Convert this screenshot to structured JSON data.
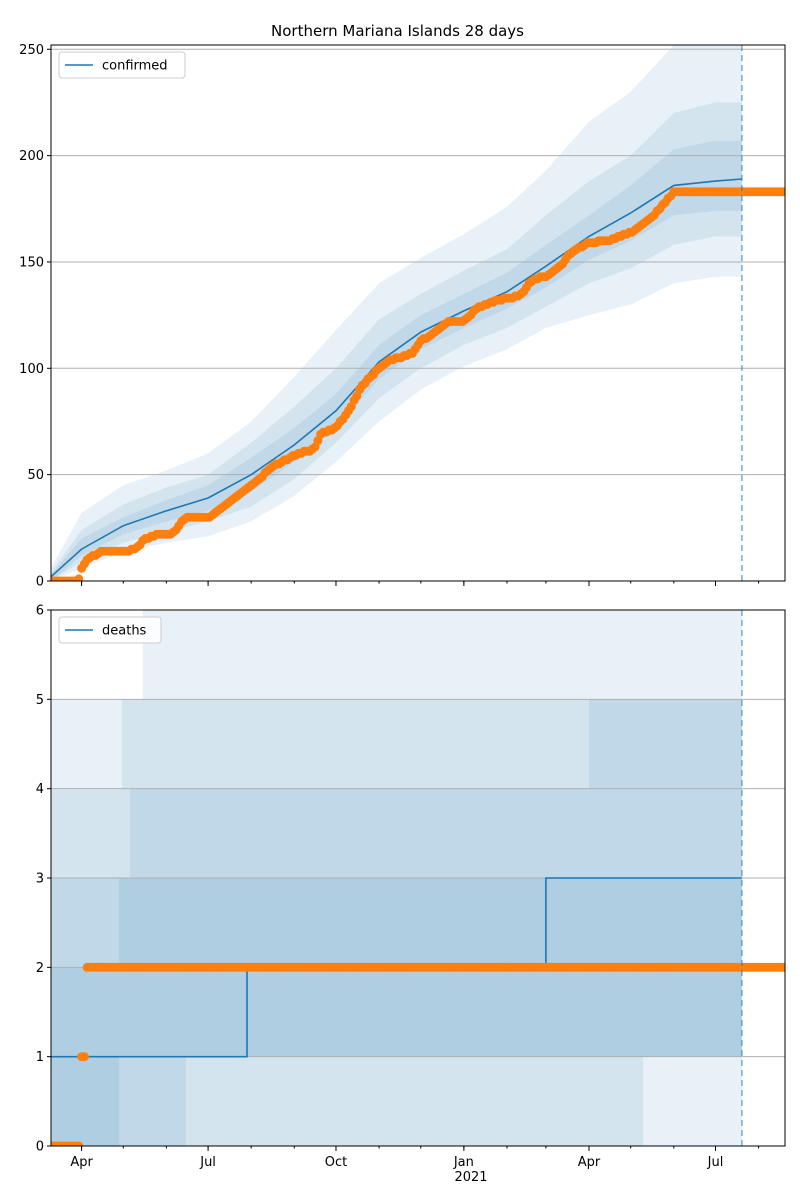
{
  "figure": {
    "title": "Northern Mariana Islands 28 days",
    "vline_date": "2021-07-20"
  },
  "colors": {
    "line": "#1f77b4",
    "observed": "#ff7f0e",
    "band": "#1f77b4",
    "grid": "#b0b0b0"
  },
  "chart_data": [
    {
      "type": "line",
      "panel": "confirmed",
      "title": "Northern Mariana Islands 28 days",
      "xlim": [
        "2020-03-10",
        "2021-08-20"
      ],
      "ylim": [
        0,
        252
      ],
      "yticks": [
        0,
        50,
        100,
        150,
        200,
        250
      ],
      "xticks": [
        {
          "date": "2020-04-01",
          "label": "Apr"
        },
        {
          "date": "2020-07-01",
          "label": "Jul"
        },
        {
          "date": "2020-10-01",
          "label": "Oct"
        },
        {
          "date": "2021-01-01",
          "label": "Jan"
        },
        {
          "date": "2021-04-01",
          "label": "Apr"
        },
        {
          "date": "2021-07-01",
          "label": "Jul"
        }
      ],
      "year_label": "2021",
      "grid": true,
      "legend": "top-left",
      "series": [
        {
          "name": "confirmed",
          "x": [
            "2020-03-10",
            "2020-04-01",
            "2020-05-01",
            "2020-06-01",
            "2020-07-01",
            "2020-08-01",
            "2020-09-01",
            "2020-10-01",
            "2020-11-01",
            "2020-12-01",
            "2021-01-01",
            "2021-02-01",
            "2021-03-01",
            "2021-04-01",
            "2021-05-01",
            "2021-06-01",
            "2021-07-01",
            "2021-07-20"
          ],
          "y": [
            2,
            15,
            26,
            33,
            39,
            50,
            64,
            80,
            103,
            117,
            127,
            136,
            148,
            162,
            173,
            186,
            188,
            189
          ]
        }
      ],
      "bands": [
        {
          "x": [
            "2020-03-10",
            "2020-04-01",
            "2020-05-01",
            "2020-06-01",
            "2020-07-01",
            "2020-08-01",
            "2020-09-01",
            "2020-10-01",
            "2020-11-01",
            "2020-12-01",
            "2021-01-01",
            "2021-02-01",
            "2021-03-01",
            "2021-04-01",
            "2021-05-01",
            "2021-06-01",
            "2021-07-01",
            "2021-07-20"
          ],
          "lower": [
            0,
            6,
            14,
            18,
            21,
            28,
            40,
            56,
            75,
            90,
            101,
            109,
            119,
            125,
            130,
            140,
            143,
            143
          ],
          "upper": [
            6,
            32,
            45,
            52,
            60,
            75,
            96,
            118,
            140,
            152,
            163,
            176,
            193,
            216,
            230,
            252,
            252,
            252
          ]
        },
        {
          "x": [
            "2020-03-10",
            "2020-04-01",
            "2020-05-01",
            "2020-06-01",
            "2020-07-01",
            "2020-08-01",
            "2020-09-01",
            "2020-10-01",
            "2020-11-01",
            "2020-12-01",
            "2021-01-01",
            "2021-02-01",
            "2021-03-01",
            "2021-04-01",
            "2021-05-01",
            "2021-06-01",
            "2021-07-01",
            "2021-07-20"
          ],
          "lower": [
            0,
            9,
            18,
            23,
            28,
            35,
            48,
            65,
            86,
            100,
            111,
            119,
            129,
            140,
            147,
            158,
            162,
            162
          ],
          "upper": [
            4,
            24,
            36,
            44,
            50,
            65,
            82,
            100,
            123,
            135,
            146,
            156,
            172,
            188,
            200,
            220,
            225,
            225
          ]
        },
        {
          "x": [
            "2020-03-10",
            "2020-04-01",
            "2020-05-01",
            "2020-06-01",
            "2020-07-01",
            "2020-08-01",
            "2020-09-01",
            "2020-10-01",
            "2020-11-01",
            "2020-12-01",
            "2021-01-01",
            "2021-02-01",
            "2021-03-01",
            "2021-04-01",
            "2021-05-01",
            "2021-06-01",
            "2021-07-01",
            "2021-07-20"
          ],
          "lower": [
            0,
            12,
            22,
            28,
            33,
            42,
            56,
            72,
            95,
            109,
            119,
            128,
            138,
            151,
            160,
            172,
            174,
            174
          ],
          "upper": [
            3,
            20,
            30,
            38,
            45,
            58,
            72,
            88,
            111,
            125,
            135,
            145,
            158,
            172,
            186,
            203,
            207,
            207
          ]
        }
      ],
      "observed": {
        "x": [
          "2020-03-10",
          "2020-03-28",
          "2020-03-31",
          "2020-04-01",
          "2020-04-05",
          "2020-04-15",
          "2020-05-01",
          "2020-05-10",
          "2020-05-15",
          "2020-05-25",
          "2020-06-05",
          "2020-06-10",
          "2020-06-15",
          "2020-06-30",
          "2020-07-05",
          "2020-07-15",
          "2020-08-01",
          "2020-08-10",
          "2020-08-20",
          "2020-09-01",
          "2020-09-15",
          "2020-09-20",
          "2020-10-01",
          "2020-10-10",
          "2020-10-20",
          "2020-11-01",
          "2020-11-10",
          "2020-11-25",
          "2020-12-01",
          "2020-12-10",
          "2020-12-20",
          "2021-01-01",
          "2021-01-10",
          "2021-01-20",
          "2021-02-01",
          "2021-02-10",
          "2021-02-20",
          "2021-03-01",
          "2021-03-10",
          "2021-03-20",
          "2021-04-01",
          "2021-04-15",
          "2021-05-01",
          "2021-05-15",
          "2021-05-22",
          "2021-06-01",
          "2021-07-01",
          "2021-08-20"
        ],
        "y": [
          0,
          0,
          2,
          6,
          10,
          14,
          14,
          15,
          19,
          22,
          22,
          26,
          30,
          30,
          31,
          36,
          45,
          50,
          55,
          59,
          62,
          69,
          72,
          80,
          92,
          100,
          104,
          107,
          113,
          116,
          122,
          122,
          128,
          131,
          133,
          134,
          142,
          143,
          147,
          155,
          159,
          160,
          164,
          170,
          175,
          183,
          183,
          183
        ]
      }
    },
    {
      "type": "line",
      "panel": "deaths",
      "title": "",
      "xlim": [
        "2020-03-10",
        "2021-08-20"
      ],
      "ylim": [
        0,
        6
      ],
      "yticks": [
        0,
        1,
        2,
        3,
        4,
        5,
        6
      ],
      "xticks": [
        {
          "date": "2020-04-01",
          "label": "Apr"
        },
        {
          "date": "2020-07-01",
          "label": "Jul"
        },
        {
          "date": "2020-10-01",
          "label": "Oct"
        },
        {
          "date": "2021-01-01",
          "label": "Jan"
        },
        {
          "date": "2021-04-01",
          "label": "Apr"
        },
        {
          "date": "2021-07-01",
          "label": "Jul"
        }
      ],
      "year_label": "2021",
      "grid": true,
      "legend": "top-left",
      "series": [
        {
          "name": "deaths",
          "x": [
            "2020-03-10",
            "2020-07-29",
            "2020-07-29",
            "2021-03-01",
            "2021-03-01",
            "2021-07-20"
          ],
          "y": [
            1,
            1,
            2,
            2,
            3,
            3
          ]
        }
      ],
      "bands": [
        {
          "x": [
            "2020-03-10",
            "2020-05-15",
            "2020-05-15",
            "2020-10-20",
            "2020-10-20",
            "2021-07-20"
          ],
          "lower": [
            0,
            0,
            0,
            0,
            0,
            0
          ],
          "upper": [
            5,
            5,
            6,
            6,
            6,
            6
          ]
        },
        {
          "x": [
            "2020-03-10",
            "2020-04-30",
            "2020-04-30",
            "2020-10-20",
            "2020-10-20",
            "2021-04-10",
            "2021-04-10",
            "2021-05-10",
            "2021-05-10",
            "2021-07-20"
          ],
          "lower": [
            0,
            0,
            0,
            0,
            0,
            0,
            0,
            0,
            1,
            1
          ],
          "upper": [
            4,
            4,
            5,
            5,
            5,
            5,
            5,
            5,
            5,
            5
          ]
        },
        {
          "x": [
            "2020-03-10",
            "2020-05-06",
            "2020-05-06",
            "2020-06-15",
            "2020-06-15",
            "2020-10-20",
            "2020-10-20",
            "2021-04-01",
            "2021-04-01",
            "2021-07-20"
          ],
          "lower": [
            0,
            0,
            0,
            0,
            1,
            1,
            1,
            1,
            1,
            1
          ],
          "upper": [
            3,
            3,
            4,
            4,
            4,
            4,
            4,
            4,
            5,
            5
          ]
        },
        {
          "x": [
            "2020-03-10",
            "2020-04-28",
            "2020-04-28",
            "2021-07-20"
          ],
          "lower": [
            0,
            0,
            1,
            1
          ],
          "upper": [
            2,
            2,
            3,
            3
          ]
        }
      ],
      "observed": {
        "x": [
          "2020-03-10",
          "2020-03-30",
          "2020-03-31",
          "2020-04-03",
          "2020-04-05",
          "2021-08-20"
        ],
        "y": [
          0,
          0,
          1,
          1,
          2,
          2
        ]
      }
    }
  ]
}
